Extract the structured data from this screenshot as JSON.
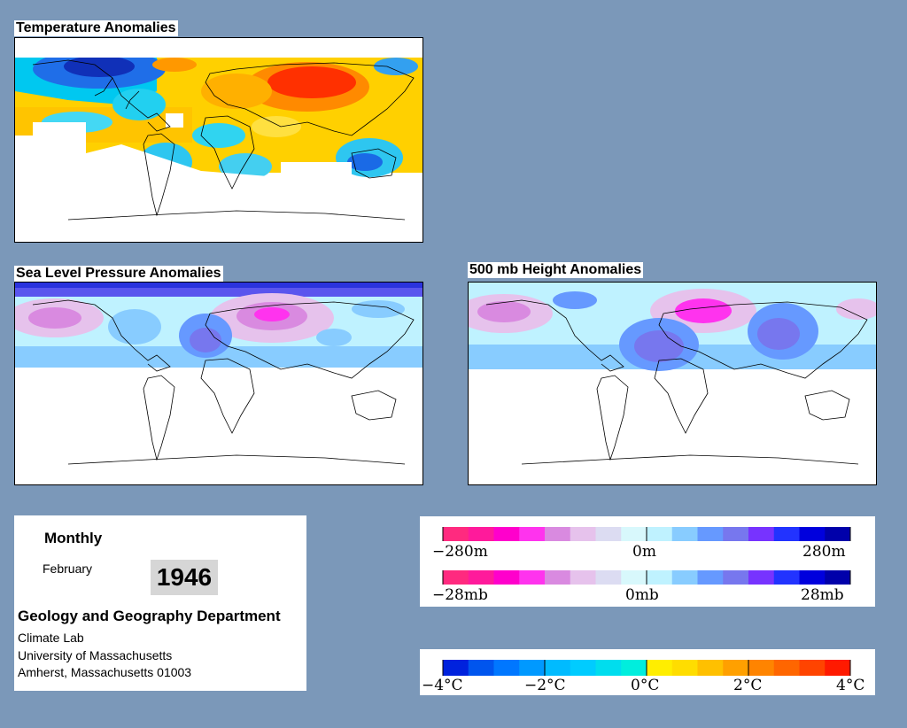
{
  "maps": {
    "temperature": {
      "title": "Temperature Anomalies"
    },
    "slp": {
      "title": "Sea Level Pressure Anomalies"
    },
    "height500": {
      "title": "500 mb Height Anomalies"
    }
  },
  "info": {
    "period": "Monthly",
    "month": "February",
    "year": "1946",
    "department": "Geology and Geography Department",
    "lab": "Climate Lab",
    "university": "University of Massachusetts",
    "address": "Amherst, Massachusetts 01003"
  },
  "legend_height": {
    "colors": [
      "#ff2a7f",
      "#ff1a9b",
      "#ff00cc",
      "#ff33ee",
      "#d98ae0",
      "#e6c2ec",
      "#dcdcf2",
      "#d8f8fc",
      "#bff2ff",
      "#88ccff",
      "#6699ff",
      "#7777ee",
      "#7733ff",
      "#2233ff",
      "#0000dd",
      "#0000aa"
    ],
    "labels": [
      "−280m",
      "0m",
      "280m"
    ]
  },
  "legend_slp": {
    "colors": [
      "#ff2a7f",
      "#ff1a9b",
      "#ff00cc",
      "#ff33ee",
      "#d98ae0",
      "#e6c2ec",
      "#dcdcf2",
      "#d8f8fc",
      "#bff2ff",
      "#88ccff",
      "#6699ff",
      "#7777ee",
      "#7733ff",
      "#2233ff",
      "#0000dd",
      "#0000aa"
    ],
    "labels": [
      "−28mb",
      "0mb",
      "28mb"
    ]
  },
  "legend_temp": {
    "colors": [
      "#0022dd",
      "#0055ee",
      "#0077ff",
      "#0099ff",
      "#00bbff",
      "#00ccff",
      "#00ddee",
      "#00eedd",
      "#ffee00",
      "#ffdd00",
      "#ffc000",
      "#ffa000",
      "#ff8400",
      "#ff6600",
      "#ff4400",
      "#ff1a00"
    ],
    "labels": [
      "−4°C",
      "−2°C",
      "0°C",
      "2°C",
      "4°C"
    ]
  },
  "colors": {
    "background": "#7b98b9",
    "panel": "#ffffff",
    "coastline": "#000000"
  }
}
